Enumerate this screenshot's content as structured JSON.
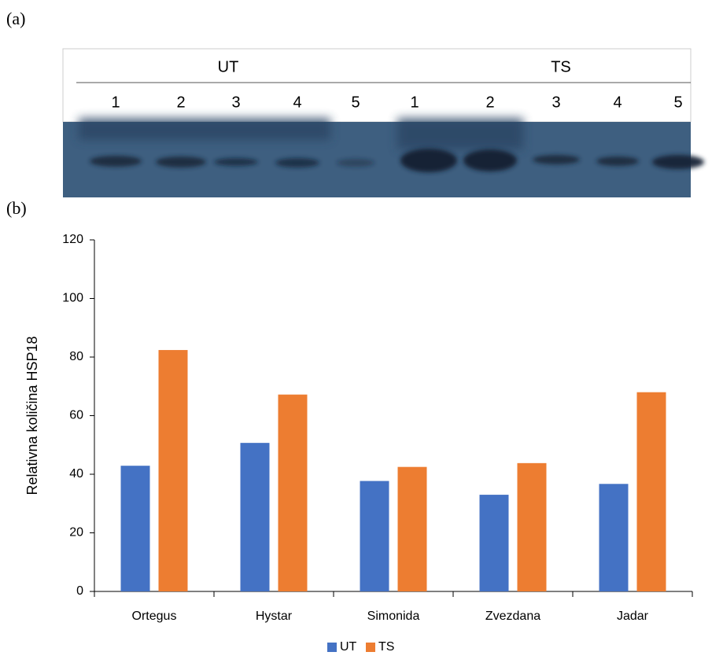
{
  "panel_labels": [
    "(a)",
    "(b)"
  ],
  "blot": {
    "groups": [
      "UT",
      "TS"
    ],
    "lanes": [
      1,
      2,
      3,
      4,
      5
    ]
  },
  "chart_data": {
    "type": "bar",
    "categories": [
      "Ortegus",
      "Hystar",
      "Simonida",
      "Zvezdana",
      "Jadar"
    ],
    "series": [
      {
        "name": "UT",
        "color": "#4472c4",
        "values": [
          42.9,
          50.7,
          37.7,
          33,
          36.7
        ]
      },
      {
        "name": "TS",
        "color": "#ed7d31",
        "values": [
          82.4,
          67.2,
          42.5,
          43.8,
          68
        ]
      }
    ],
    "ylabel": "Relativna količina HSP18",
    "ylim": [
      0,
      120
    ],
    "yticks": [
      0,
      20,
      40,
      60,
      80,
      100,
      120
    ],
    "grid": false,
    "legend": "bottom"
  }
}
